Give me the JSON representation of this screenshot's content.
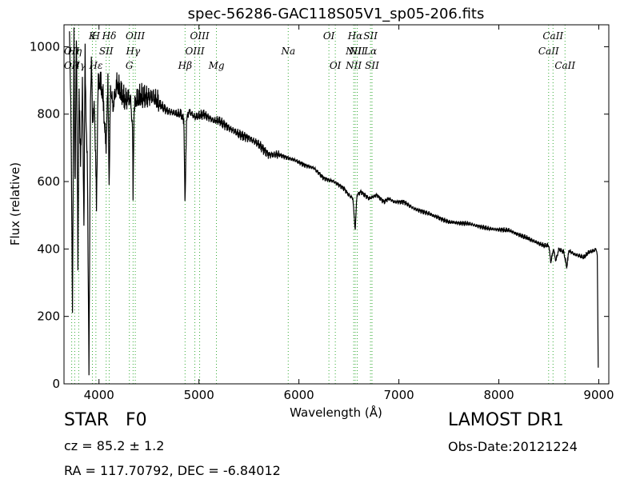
{
  "chart_data": {
    "type": "line",
    "title": "spec-56286-GAC118S05V1_sp05-206.fits",
    "xlabel": "Wavelength (Å)",
    "ylabel": "Flux (relative)",
    "xlim": [
      3650,
      9100
    ],
    "ylim": [
      0,
      1065
    ],
    "xticks": [
      4000,
      5000,
      6000,
      7000,
      8000,
      9000
    ],
    "yticks": [
      0,
      200,
      400,
      600,
      800,
      1000
    ],
    "grid": false,
    "line_color": "#000000",
    "marker_color": "#33aa33",
    "spectrum_anchors": {
      "x": [
        3705,
        3720,
        3735,
        3750,
        3760,
        3775,
        3790,
        3800,
        3815,
        3835,
        3850,
        3860,
        3870,
        3885,
        3900,
        3915,
        3925,
        3935,
        3955,
        3968,
        3975,
        3990,
        4010,
        4040,
        4070,
        4090,
        4102,
        4115,
        4140,
        4180,
        4220,
        4260,
        4300,
        4320,
        4335,
        4341,
        4350,
        4370,
        4420,
        4480,
        4540,
        4600,
        4680,
        4780,
        4820,
        4850,
        4861,
        4875,
        4900,
        4960,
        5050,
        5150,
        5200,
        5300,
        5400,
        5500,
        5600,
        5700,
        5800,
        5893,
        5950,
        6050,
        6150,
        6250,
        6350,
        6450,
        6500,
        6540,
        6563,
        6580,
        6620,
        6700,
        6780,
        6850,
        6900,
        6950,
        7050,
        7150,
        7300,
        7500,
        7700,
        7900,
        8100,
        8300,
        8450,
        8500,
        8520,
        8545,
        8570,
        8600,
        8650,
        8680,
        8700,
        8750,
        8800,
        8850,
        8900,
        8950,
        8975,
        8985,
        8990,
        8995
      ],
      "y": [
        1060,
        780,
        230,
        1050,
        560,
        1060,
        300,
        900,
        650,
        880,
        450,
        990,
        800,
        620,
        30,
        850,
        960,
        780,
        820,
        650,
        520,
        880,
        900,
        850,
        700,
        900,
        570,
        880,
        820,
        890,
        860,
        840,
        850,
        830,
        760,
        550,
        810,
        840,
        850,
        850,
        850,
        830,
        810,
        800,
        800,
        780,
        520,
        780,
        810,
        790,
        800,
        780,
        780,
        760,
        740,
        730,
        710,
        680,
        680,
        670,
        665,
        650,
        640,
        610,
        600,
        580,
        560,
        550,
        455,
        560,
        570,
        550,
        560,
        540,
        550,
        540,
        540,
        520,
        505,
        480,
        475,
        460,
        455,
        430,
        410,
        410,
        360,
        400,
        365,
        400,
        390,
        345,
        395,
        385,
        380,
        375,
        390,
        395,
        400,
        380,
        200,
        10
      ]
    },
    "line_markers": [
      {
        "label": "OII",
        "x": 3727,
        "row": 1
      },
      {
        "label": "OII",
        "x": 3727,
        "row": 2
      },
      {
        "label": "Hη",
        "x": 3757,
        "row": 1
      },
      {
        "label": "Hγ",
        "x": 3797,
        "row": 2
      },
      {
        "label": "K",
        "x": 3934,
        "row": 0
      },
      {
        "label": "H",
        "x": 3969,
        "row": 0
      },
      {
        "label": "Hε",
        "x": 3970,
        "row": 2
      },
      {
        "label": "SII",
        "x": 4072,
        "row": 1
      },
      {
        "label": "Hδ",
        "x": 4102,
        "row": 0
      },
      {
        "label": "Hγ",
        "x": 4341,
        "row": 1
      },
      {
        "label": "G",
        "x": 4304,
        "row": 2
      },
      {
        "label": "OIII",
        "x": 4363,
        "row": 0
      },
      {
        "label": "Hβ",
        "x": 4861,
        "row": 2
      },
      {
        "label": "OIII",
        "x": 4959,
        "row": 1
      },
      {
        "label": "OIII",
        "x": 5007,
        "row": 0
      },
      {
        "label": "Mg",
        "x": 5175,
        "row": 2
      },
      {
        "label": "Na",
        "x": 5893,
        "row": 1
      },
      {
        "label": "OI",
        "x": 6300,
        "row": 0
      },
      {
        "label": "OI",
        "x": 6364,
        "row": 2
      },
      {
        "label": "NII",
        "x": 6548,
        "row": 1
      },
      {
        "label": "NII",
        "x": 6548,
        "row": 2
      },
      {
        "label": "Hα",
        "x": 6563,
        "row": 0
      },
      {
        "label": "NII",
        "x": 6583,
        "row": 1
      },
      {
        "label": "Lα",
        "x": 6716,
        "row": 1
      },
      {
        "label": "SII",
        "x": 6716,
        "row": 0
      },
      {
        "label": "SII",
        "x": 6731,
        "row": 2
      },
      {
        "label": "CaII",
        "x": 8498,
        "row": 1
      },
      {
        "label": "CaII",
        "x": 8542,
        "row": 0
      },
      {
        "label": "CaII",
        "x": 8662,
        "row": 2
      }
    ]
  },
  "info": {
    "object_class": "STAR",
    "subclass": "F0",
    "redshift": "cz = 85.2 ± 1.2",
    "coords": "RA = 117.70792, DEC = -6.84012",
    "survey": "LAMOST DR1",
    "obs_date": "Obs-Date:20121224"
  }
}
